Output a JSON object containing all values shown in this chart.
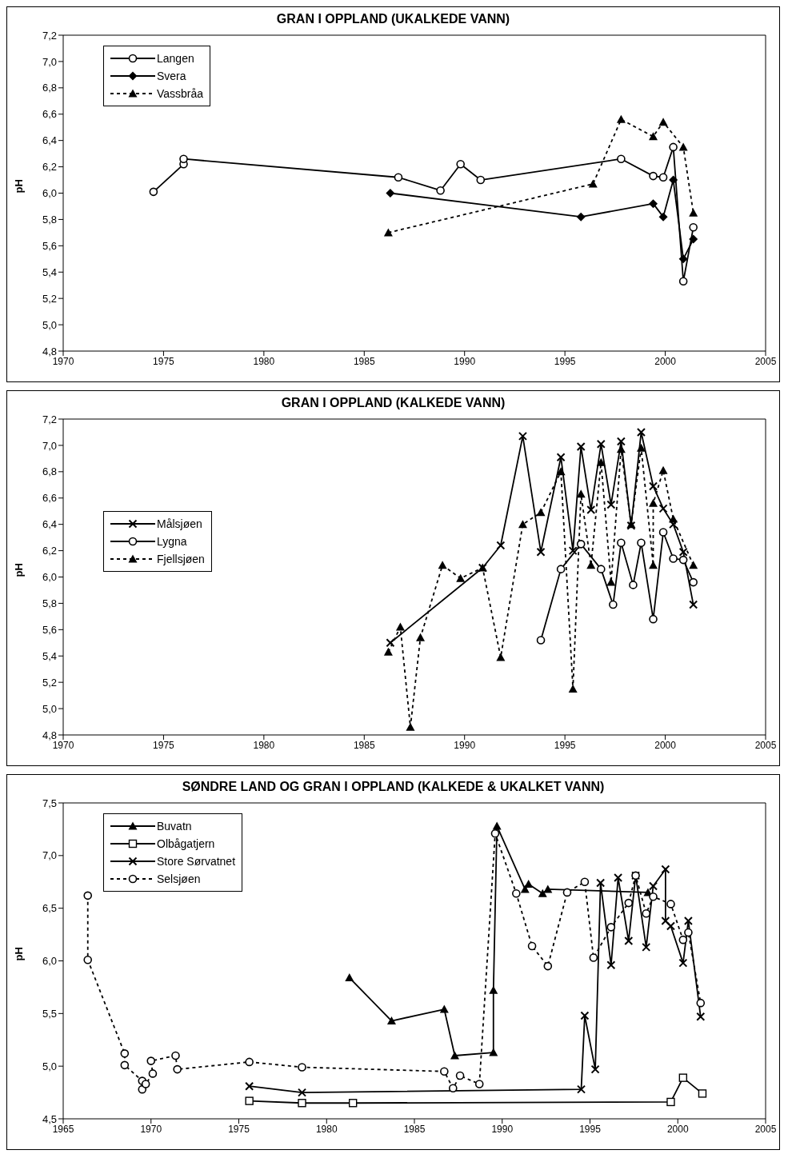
{
  "chart_data": [
    {
      "type": "line",
      "title": "GRAN I OPPLAND (UKALKEDE VANN)",
      "ylabel": "pH",
      "legend": "top left",
      "xlim": [
        1970,
        2005
      ],
      "xticks": [
        1970,
        1975,
        1980,
        1985,
        1990,
        1995,
        2000,
        2005
      ],
      "ylim": [
        4.8,
        7.2
      ],
      "yticks": [
        {
          "value": 4.8,
          "label": "4,8"
        },
        {
          "value": 5.0,
          "label": "5,0"
        },
        {
          "value": 5.2,
          "label": "5,2"
        },
        {
          "value": 5.4,
          "label": "5,4"
        },
        {
          "value": 5.6,
          "label": "5,6"
        },
        {
          "value": 5.8,
          "label": "5,8"
        },
        {
          "value": 6.0,
          "label": "6,0"
        },
        {
          "value": 6.2,
          "label": "6,2"
        },
        {
          "value": 6.4,
          "label": "6,4"
        },
        {
          "value": 6.6,
          "label": "6,6"
        },
        {
          "value": 6.8,
          "label": "6,8"
        },
        {
          "value": 7.0,
          "label": "7,0"
        },
        {
          "value": 7.2,
          "label": "7,2"
        }
      ],
      "series": [
        {
          "name": "Langen",
          "color": "#000000",
          "marker": "circle",
          "line_style": "solid",
          "x": [
            1974.5,
            1976.0,
            1976.0,
            1986.7,
            1988.8,
            1989.8,
            1990.8,
            1997.8,
            1999.4,
            1999.9,
            2000.4,
            2000.9,
            2001.4
          ],
          "values": [
            6.01,
            6.22,
            6.26,
            6.12,
            6.02,
            6.22,
            6.1,
            6.26,
            6.13,
            6.12,
            6.35,
            5.33,
            5.74
          ]
        },
        {
          "name": "Svera",
          "color": "#000000",
          "marker": "diamond",
          "line_style": "solid",
          "x": [
            1986.3,
            1995.8,
            1999.4,
            1999.9,
            2000.4,
            2000.9,
            2001.4
          ],
          "values": [
            6.0,
            5.82,
            5.92,
            5.82,
            6.1,
            5.5,
            5.65
          ]
        },
        {
          "name": "Vassbråa",
          "color": "#000000",
          "marker": "triangle",
          "line_style": "dashed",
          "x": [
            1986.2,
            1996.4,
            1997.8,
            1999.4,
            1999.9,
            2000.9,
            2001.4
          ],
          "values": [
            5.7,
            6.07,
            6.56,
            6.43,
            6.54,
            6.35,
            5.85
          ]
        }
      ]
    },
    {
      "type": "line",
      "title": "GRAN I OPPLAND (KALKEDE VANN)",
      "ylabel": "pH",
      "legend": "left",
      "xlim": [
        1970,
        2005
      ],
      "xticks": [
        1970,
        1975,
        1980,
        1985,
        1990,
        1995,
        2000,
        2005
      ],
      "ylim": [
        4.8,
        7.2
      ],
      "yticks": [
        {
          "value": 4.8,
          "label": "4,8"
        },
        {
          "value": 5.0,
          "label": "5,0"
        },
        {
          "value": 5.2,
          "label": "5,2"
        },
        {
          "value": 5.4,
          "label": "5,4"
        },
        {
          "value": 5.6,
          "label": "5,6"
        },
        {
          "value": 5.8,
          "label": "5,8"
        },
        {
          "value": 6.0,
          "label": "6,0"
        },
        {
          "value": 6.2,
          "label": "6,2"
        },
        {
          "value": 6.4,
          "label": "6,4"
        },
        {
          "value": 6.6,
          "label": "6,6"
        },
        {
          "value": 6.8,
          "label": "6,8"
        },
        {
          "value": 7.0,
          "label": "7,0"
        },
        {
          "value": 7.2,
          "label": "7,2"
        }
      ],
      "series": [
        {
          "name": "Målsjøen",
          "color": "#000000",
          "marker": "cross",
          "line_style": "solid",
          "x": [
            1986.3,
            1990.9,
            1991.8,
            1992.9,
            1993.8,
            1994.8,
            1995.4,
            1995.8,
            1996.3,
            1996.8,
            1997.3,
            1997.8,
            1998.3,
            1998.8,
            1999.4,
            1999.9,
            2000.4,
            2000.9,
            2001.4
          ],
          "values": [
            5.5,
            6.07,
            6.24,
            7.07,
            6.19,
            6.91,
            6.2,
            6.99,
            6.51,
            7.01,
            6.55,
            7.03,
            6.39,
            7.1,
            6.69,
            6.52,
            6.4,
            6.19,
            5.79
          ]
        },
        {
          "name": "Lygna",
          "color": "#000000",
          "marker": "circle",
          "line_style": "solid",
          "x": [
            1993.8,
            1994.8,
            1995.8,
            1996.8,
            1997.4,
            1997.8,
            1998.4,
            1998.8,
            1999.4,
            1999.9,
            2000.4,
            2000.9,
            2001.4
          ],
          "values": [
            5.52,
            6.06,
            6.25,
            6.06,
            5.79,
            6.26,
            5.94,
            6.26,
            5.68,
            6.34,
            6.14,
            6.13,
            5.96
          ]
        },
        {
          "name": "Fjellsjøen",
          "color": "#000000",
          "marker": "triangle",
          "line_style": "dashed",
          "x": [
            1986.2,
            1986.8,
            1987.3,
            1987.8,
            1988.9,
            1989.8,
            1990.9,
            1991.8,
            1992.9,
            1993.8,
            1994.8,
            1995.4,
            1995.8,
            1996.3,
            1996.8,
            1997.3,
            1997.8,
            1998.3,
            1998.8,
            1999.4,
            1999.4,
            1999.9,
            2000.4,
            2001.4
          ],
          "values": [
            5.43,
            5.62,
            4.86,
            5.54,
            6.09,
            5.99,
            6.07,
            5.39,
            6.4,
            6.49,
            6.8,
            5.15,
            6.63,
            6.09,
            6.87,
            5.96,
            6.97,
            6.4,
            6.98,
            6.09,
            6.56,
            6.81,
            6.44,
            6.09
          ]
        }
      ]
    },
    {
      "type": "line",
      "title": "SØNDRE LAND OG GRAN I OPPLAND (KALKEDE & UKALKET VANN)",
      "ylabel": "pH",
      "legend": "top left",
      "xlim": [
        1965,
        2005
      ],
      "xticks": [
        1965,
        1970,
        1975,
        1980,
        1985,
        1990,
        1995,
        2000,
        2005
      ],
      "ylim": [
        4.5,
        7.5
      ],
      "yticks": [
        {
          "value": 4.5,
          "label": "4,5"
        },
        {
          "value": 5.0,
          "label": "5,0"
        },
        {
          "value": 5.5,
          "label": "5,5"
        },
        {
          "value": 6.0,
          "label": "6,0"
        },
        {
          "value": 6.5,
          "label": "6,5"
        },
        {
          "value": 7.0,
          "label": "7,0"
        },
        {
          "value": 7.5,
          "label": "7,5"
        }
      ],
      "series": [
        {
          "name": "Buvatn",
          "color": "#000000",
          "marker": "triangle",
          "line_style": "solid",
          "x": [
            1981.3,
            1983.7,
            1986.7,
            1987.3,
            1989.5,
            1989.5,
            1989.7,
            1991.3,
            1991.5,
            1992.3,
            1992.6,
            1998.3
          ],
          "values": [
            5.84,
            5.43,
            5.54,
            5.1,
            5.13,
            5.72,
            7.28,
            6.68,
            6.73,
            6.64,
            6.68,
            6.65
          ]
        },
        {
          "name": "Olbågatjern",
          "color": "#000000",
          "marker": "square",
          "line_style": "solid",
          "x": [
            1975.6,
            1978.6,
            1981.5,
            1999.6,
            2000.3,
            2001.4
          ],
          "values": [
            4.67,
            4.65,
            4.65,
            4.66,
            4.89,
            4.74
          ]
        },
        {
          "name": "Store Sørvatnet",
          "color": "#000000",
          "marker": "cross",
          "line_style": "solid",
          "x": [
            1975.6,
            1978.6,
            1994.5,
            1994.7,
            1995.3,
            1995.6,
            1996.2,
            1996.6,
            1997.2,
            1997.6,
            1998.2,
            1998.6,
            1999.3,
            1999.3,
            1999.6,
            2000.3,
            2000.6,
            2001.3
          ],
          "values": [
            4.81,
            4.75,
            4.78,
            5.48,
            4.97,
            6.74,
            5.96,
            6.79,
            6.19,
            6.81,
            6.13,
            6.71,
            6.87,
            6.38,
            6.33,
            5.98,
            6.38,
            5.47
          ]
        },
        {
          "name": "Selsjøen",
          "color": "#000000",
          "marker": "circle",
          "line_style": "dashed",
          "x": [
            1966.4,
            1966.4,
            1968.5,
            1968.5,
            1969.5,
            1969.5,
            1969.7,
            1970.1,
            1970.0,
            1971.4,
            1971.5,
            1975.6,
            1978.6,
            1986.7,
            1987.2,
            1987.6,
            1988.7,
            1989.6,
            1990.8,
            1991.7,
            1992.6,
            1993.7,
            1994.7,
            1995.2,
            1996.2,
            1997.2,
            1997.6,
            1998.2,
            1998.6,
            1999.6,
            2000.3,
            2000.6,
            2001.3
          ],
          "values": [
            6.62,
            6.01,
            5.12,
            5.01,
            4.86,
            4.78,
            4.83,
            4.93,
            5.05,
            5.1,
            4.97,
            5.04,
            4.99,
            4.95,
            4.79,
            4.91,
            4.83,
            7.21,
            6.64,
            6.14,
            5.95,
            6.65,
            6.75,
            6.03,
            6.32,
            6.55,
            6.81,
            6.45,
            6.61,
            6.54,
            6.2,
            6.27,
            5.6
          ]
        }
      ]
    }
  ]
}
